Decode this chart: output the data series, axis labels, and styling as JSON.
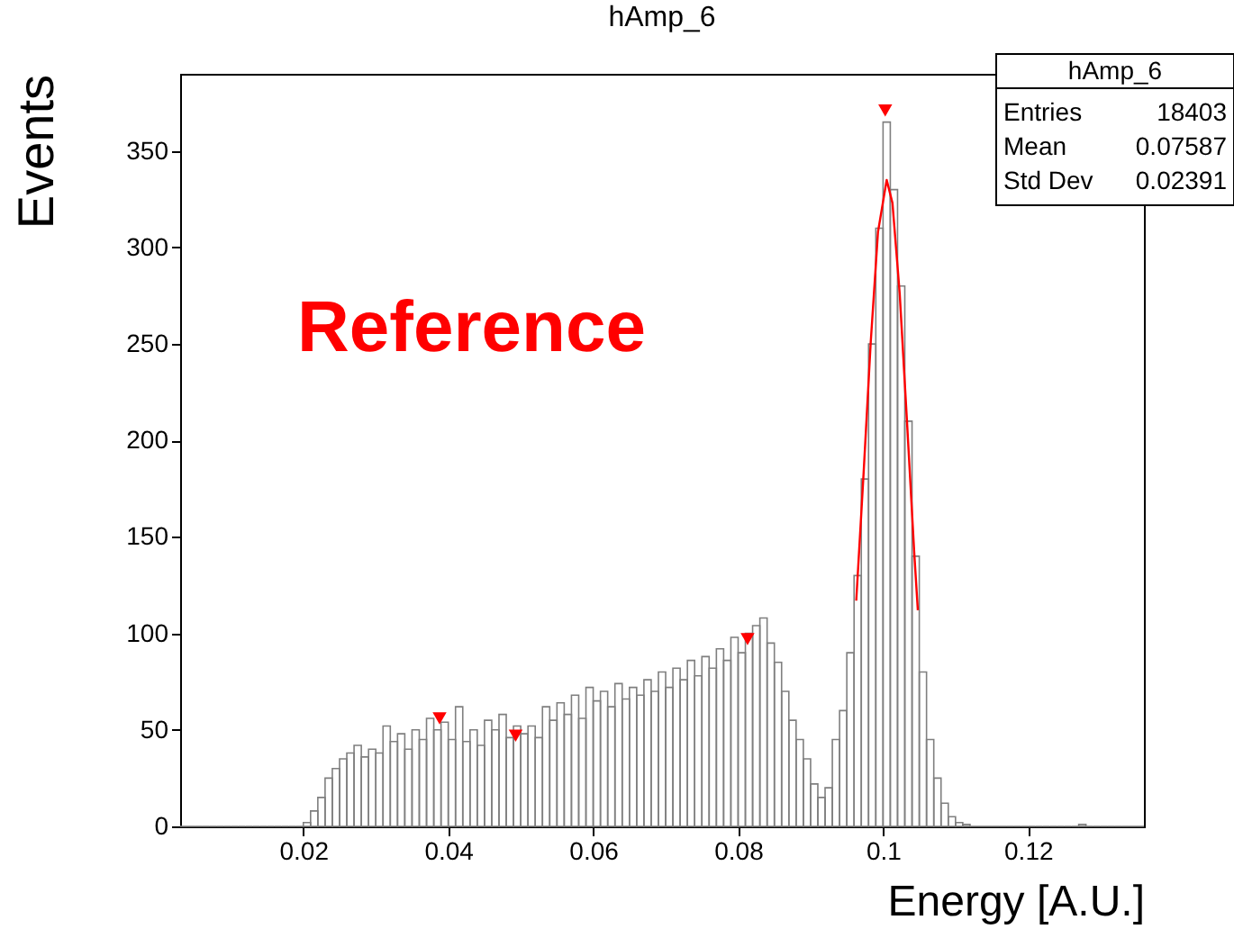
{
  "chart_data": {
    "type": "histogram",
    "title": "hAmp_6",
    "xlabel": "Energy [A.U.]",
    "ylabel": "Events",
    "annotations": [
      "Reference",
      "hAmp_6",
      "Entries",
      "18403",
      "Mean",
      "0.07587",
      "Std Dev",
      "0.02391"
    ],
    "color": "#7f7f7f",
    "bins": [
      0.003,
      0.004,
      0.005,
      0.006,
      0.007,
      0.008,
      0.009,
      0.01,
      0.011,
      0.012,
      0.013,
      0.014,
      0.015,
      0.016,
      0.017,
      0.018,
      0.019,
      0.02,
      0.021,
      0.022,
      0.023,
      0.024,
      0.025,
      0.026,
      0.027,
      0.028,
      0.029,
      0.03,
      0.031,
      0.032,
      0.033,
      0.034,
      0.035,
      0.036,
      0.037,
      0.038,
      0.039,
      0.04,
      0.041,
      0.042,
      0.043,
      0.044,
      0.045,
      0.046,
      0.047,
      0.048,
      0.049,
      0.05,
      0.051,
      0.052,
      0.053,
      0.054,
      0.055,
      0.056,
      0.057,
      0.058,
      0.059,
      0.06,
      0.061,
      0.062,
      0.063,
      0.064,
      0.065,
      0.066,
      0.067,
      0.068,
      0.069,
      0.07,
      0.071,
      0.072,
      0.073,
      0.074,
      0.075,
      0.076,
      0.077,
      0.078,
      0.079,
      0.08,
      0.081,
      0.082,
      0.083,
      0.084,
      0.085,
      0.086,
      0.087,
      0.088,
      0.089,
      0.09,
      0.091,
      0.092,
      0.093,
      0.094,
      0.095,
      0.096,
      0.097,
      0.098,
      0.099,
      0.1,
      0.101,
      0.102,
      0.103,
      0.104,
      0.105,
      0.106,
      0.107,
      0.108,
      0.109,
      0.11,
      0.111,
      0.112,
      0.113,
      0.114,
      0.115,
      0.116,
      0.117,
      0.118,
      0.119,
      0.12,
      0.121,
      0.122,
      0.123,
      0.124,
      0.125,
      0.126,
      0.127,
      0.128,
      0.129,
      0.13,
      0.131,
      0.132,
      0.133,
      0.134,
      0.135,
      0.136
    ],
    "values": [
      0,
      0,
      0,
      0,
      0,
      0,
      0,
      0,
      0,
      0,
      0,
      0,
      0,
      0,
      0,
      0,
      0,
      2,
      8,
      15,
      25,
      30,
      35,
      38,
      42,
      36,
      40,
      38,
      52,
      44,
      48,
      40,
      50,
      45,
      56,
      50,
      54,
      45,
      62,
      44,
      50,
      42,
      55,
      50,
      58,
      46,
      52,
      48,
      52,
      46,
      62,
      55,
      64,
      58,
      68,
      56,
      72,
      65,
      70,
      62,
      74,
      66,
      72,
      68,
      76,
      70,
      80,
      72,
      82,
      76,
      86,
      78,
      88,
      82,
      92,
      86,
      98,
      90,
      100,
      104,
      108,
      95,
      85,
      70,
      55,
      45,
      35,
      22,
      15,
      20,
      45,
      60,
      90,
      130,
      180,
      250,
      310,
      365,
      330,
      280,
      210,
      140,
      80,
      45,
      25,
      12,
      5,
      2,
      1,
      0,
      0,
      0,
      0,
      0,
      0,
      0,
      0,
      0,
      0,
      0,
      0,
      0,
      0,
      0,
      1,
      0,
      0,
      0,
      0,
      0,
      0,
      0,
      0
    ],
    "series": [
      {
        "type": "line",
        "color": "#ff0000",
        "x": [
          0.0963,
          0.0973,
          0.0983,
          0.0993,
          0.1005,
          0.1013,
          0.1023,
          0.1033,
          0.1043,
          0.1048
        ],
        "values": [
          117,
          182,
          251,
          308,
          335,
          323,
          276,
          210,
          142,
          112
        ]
      },
      {
        "type": "scatter",
        "marker": "triangle",
        "color": "#ff0000",
        "x": [
          0.0388,
          0.0493,
          0.0813,
          0.1003
        ],
        "values": [
          56,
          47,
          97,
          371
        ]
      }
    ],
    "xlim": [
      0.003,
      0.136
    ],
    "ylim": [
      0,
      390
    ],
    "xticks": [
      0.02,
      0.04,
      0.06,
      0.08,
      0.1,
      0.12
    ],
    "yticks": [
      0,
      50,
      100,
      150,
      200,
      250,
      300,
      350
    ]
  }
}
